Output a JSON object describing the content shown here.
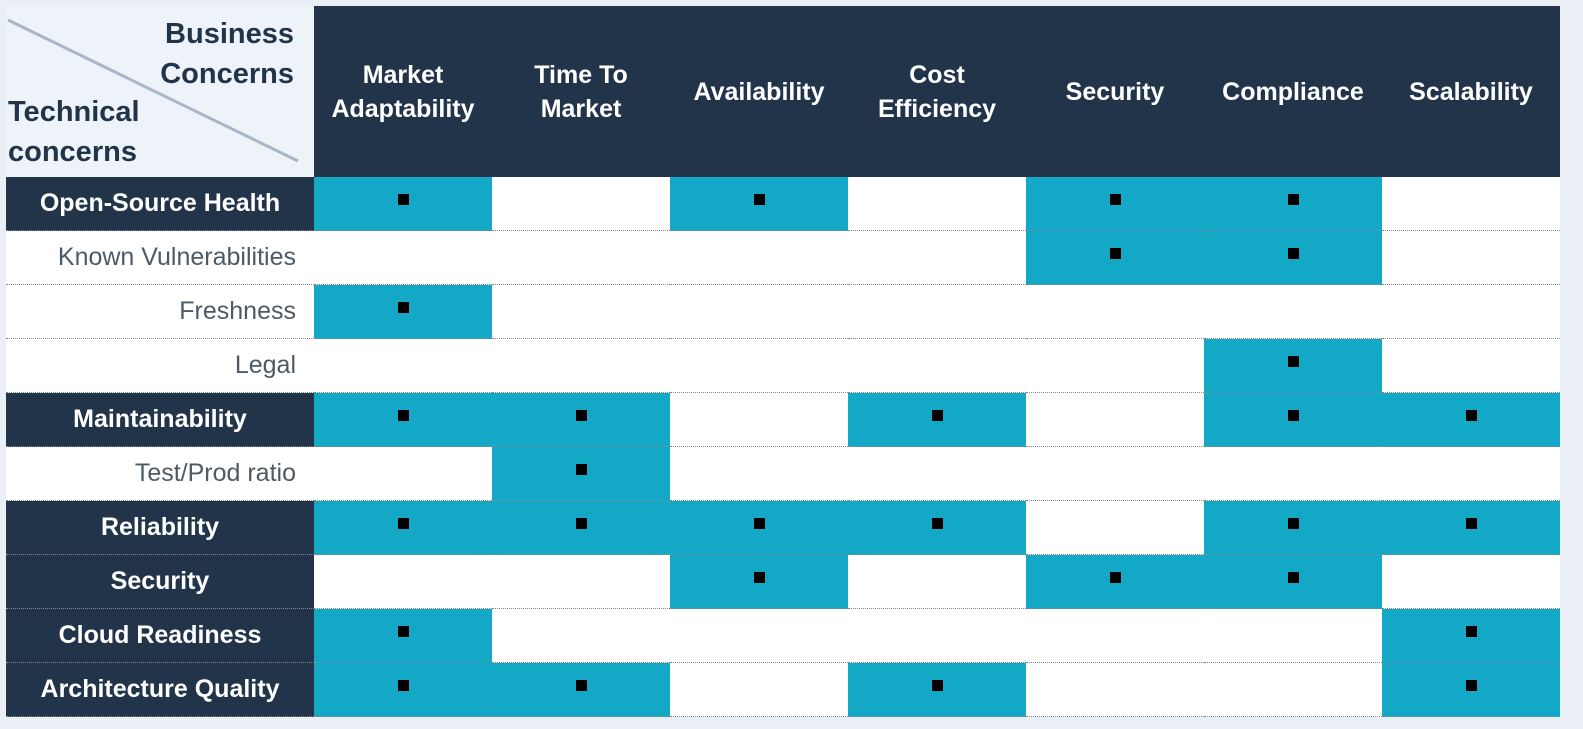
{
  "corner": {
    "business_line1": "Business",
    "business_line2": "Concerns",
    "technical_line1": "Technical",
    "technical_line2": "concerns"
  },
  "columns": [
    {
      "line1": "Market",
      "line2": "Adaptability"
    },
    {
      "line1": "Time To",
      "line2": "Market"
    },
    {
      "line1": "Availability",
      "line2": ""
    },
    {
      "line1": "Cost",
      "line2": "Efficiency"
    },
    {
      "line1": "Security",
      "line2": ""
    },
    {
      "line1": "Compliance",
      "line2": ""
    },
    {
      "line1": "Scalability",
      "line2": ""
    }
  ],
  "rows": [
    {
      "label": "Open-Source Health",
      "major": true,
      "marks": [
        1,
        0,
        1,
        0,
        1,
        1,
        0
      ]
    },
    {
      "label": "Known Vulnerabilities",
      "major": false,
      "marks": [
        0,
        0,
        0,
        0,
        1,
        1,
        0
      ]
    },
    {
      "label": "Freshness",
      "major": false,
      "marks": [
        1,
        0,
        0,
        0,
        0,
        0,
        0
      ]
    },
    {
      "label": "Legal",
      "major": false,
      "marks": [
        0,
        0,
        0,
        0,
        0,
        1,
        0
      ]
    },
    {
      "label": "Maintainability",
      "major": true,
      "marks": [
        1,
        1,
        0,
        1,
        0,
        1,
        1
      ]
    },
    {
      "label": "Test/Prod ratio",
      "major": false,
      "marks": [
        0,
        1,
        0,
        0,
        0,
        0,
        0
      ]
    },
    {
      "label": "Reliability",
      "major": true,
      "marks": [
        1,
        1,
        1,
        1,
        0,
        1,
        1
      ]
    },
    {
      "label": "Security",
      "major": true,
      "marks": [
        0,
        0,
        1,
        0,
        1,
        1,
        0
      ]
    },
    {
      "label": "Cloud Readiness",
      "major": true,
      "marks": [
        1,
        0,
        0,
        0,
        0,
        0,
        1
      ]
    },
    {
      "label": "Architecture Quality",
      "major": true,
      "marks": [
        1,
        1,
        0,
        1,
        0,
        0,
        1
      ]
    }
  ],
  "colors": {
    "header_bg": "#22344a",
    "marked_cell": "#13a8c5",
    "corner_bg": "#eef3f9",
    "minor_text": "#4d5a66"
  }
}
